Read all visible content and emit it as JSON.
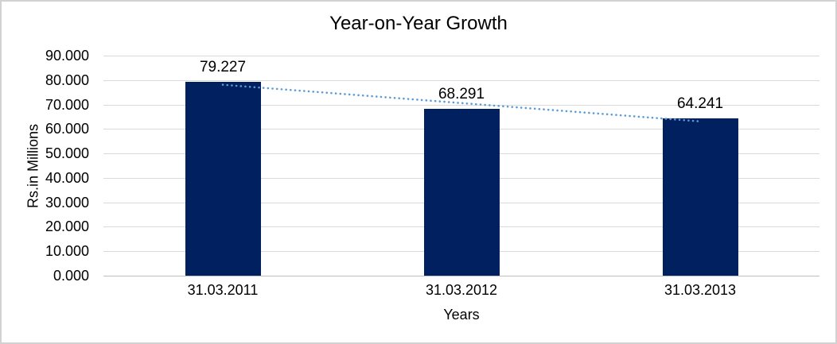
{
  "chart_data": {
    "type": "bar",
    "title": "Year-on-Year Growth",
    "categories": [
      "31.03.2011",
      "31.03.2012",
      "31.03.2013"
    ],
    "values": [
      79.227,
      68.291,
      64.241
    ],
    "data_labels": [
      "79.227",
      "68.291",
      "64.241"
    ],
    "xlabel": "Years",
    "ylabel": "Rs.in Millions",
    "ylim": [
      0,
      90
    ],
    "ytick_interval": 10,
    "ytick_labels": [
      "0.000",
      "10.000",
      "20.000",
      "30.000",
      "40.000",
      "50.000",
      "60.000",
      "70.000",
      "80.000",
      "90.000"
    ],
    "grid": true,
    "legend": "none",
    "trendline": {
      "type": "linear",
      "style": "dotted"
    },
    "colors": {
      "bar": "#002060",
      "trendline": "#5b9bd5",
      "gridline": "#d9d9d9",
      "axis_line": "#bfbfbf",
      "text": "#000000",
      "background": "#ffffff",
      "border": "#d2d2d2"
    }
  }
}
